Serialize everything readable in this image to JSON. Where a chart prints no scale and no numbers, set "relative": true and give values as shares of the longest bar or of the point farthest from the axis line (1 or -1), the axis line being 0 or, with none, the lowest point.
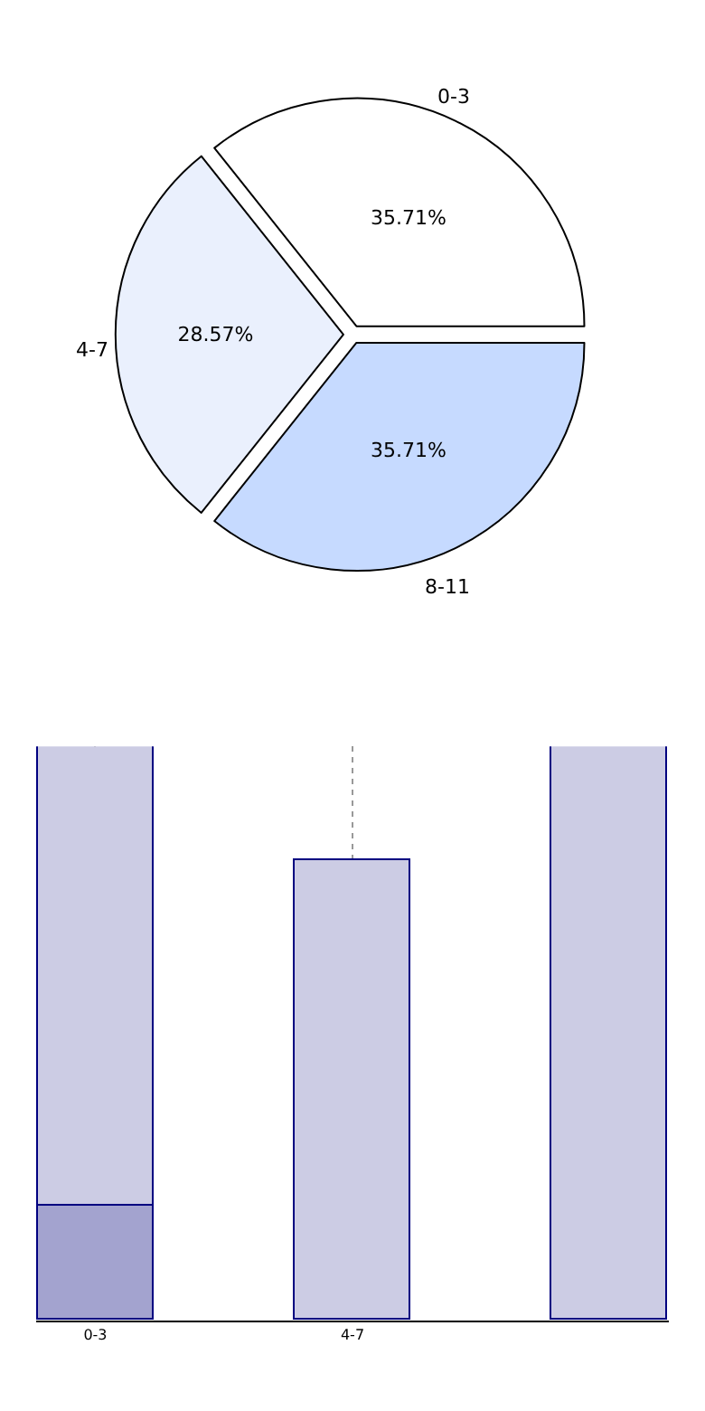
{
  "chart_data": [
    {
      "type": "pie",
      "categories": [
        "0-3",
        "4-7",
        "8-11"
      ],
      "values": [
        35.71,
        28.57,
        35.71
      ],
      "colors": [
        "#ffffff",
        "#eaf0fd",
        "#c6daff"
      ],
      "value_labels": [
        "35.71%",
        "28.57%",
        "35.71%"
      ]
    },
    {
      "type": "bar",
      "relative": true,
      "stacked": true,
      "categories": [
        "0-3",
        "4-7",
        null
      ],
      "grid": "x",
      "series": [
        {
          "color": "#a3a3cf",
          "values": [
            0.2,
            null,
            null
          ]
        },
        {
          "color": "#ccccE4",
          "values": [
            0.8,
            0.8,
            1.0
          ]
        }
      ]
    }
  ]
}
